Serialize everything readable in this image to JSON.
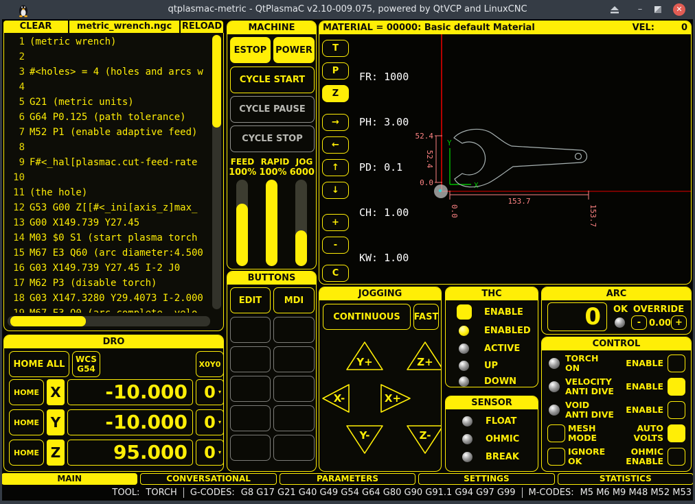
{
  "window": {
    "title": "qtplasmac-metric - QtPlasmaC v2.10-009.075, powered by QtVCP and LinuxCNC"
  },
  "file_bar": {
    "clear_label": "CLEAR",
    "filename": "metric_wrench.ngc",
    "reload_label": "RELOAD"
  },
  "gcode_lines": [
    {
      "n": "1",
      "text": "(metric wrench)"
    },
    {
      "n": "2",
      "text": ""
    },
    {
      "n": "3",
      "text": "#<holes> = 4 (holes and arcs w"
    },
    {
      "n": "4",
      "text": ""
    },
    {
      "n": "5",
      "text": "G21 (metric units)"
    },
    {
      "n": "6",
      "text": "G64 P0.125 (path tolerance)"
    },
    {
      "n": "7",
      "text": "M52 P1 (enable adaptive feed)"
    },
    {
      "n": "8",
      "text": ""
    },
    {
      "n": "9",
      "text": "F#<_hal[plasmac.cut-feed-rate"
    },
    {
      "n": "10",
      "text": ""
    },
    {
      "n": "11",
      "text": "(the hole)"
    },
    {
      "n": "12",
      "text": "G53 G00 Z[[#<_ini[axis_z]max_"
    },
    {
      "n": "13",
      "text": "G00 X149.739 Y27.45"
    },
    {
      "n": "14",
      "text": "M03 $0 S1 (start plasma torch"
    },
    {
      "n": "15",
      "text": "M67 E3 Q60 (arc diameter:4.500"
    },
    {
      "n": "16",
      "text": "G03 X149.739 Y27.45 I-2 J0"
    },
    {
      "n": "17",
      "text": "M62 P3 (disable torch)"
    },
    {
      "n": "18",
      "text": "G03 X147.3280 Y29.4073 I-2.000"
    },
    {
      "n": "19",
      "text": "M67 E3 Q0 (arc complete, velo"
    }
  ],
  "machine": {
    "title": "MACHINE",
    "estop": "ESTOP",
    "power": "POWER",
    "cycle_start": "CYCLE START",
    "cycle_pause": "CYCLE PAUSE",
    "cycle_stop": "CYCLE STOP",
    "sliders": [
      {
        "label": "FEED",
        "value": "100%",
        "pct": 72
      },
      {
        "label": "RAPID",
        "value": "100%",
        "pct": 100
      },
      {
        "label": "JOG",
        "value": "6000",
        "pct": 41
      }
    ]
  },
  "buttons_panel": {
    "title": "BUTTONS",
    "edit": "EDIT",
    "mdi": "MDI"
  },
  "preview": {
    "material": "MATERIAL =  00000: Basic default Material",
    "vel_label": "VEL:",
    "vel_value": "0",
    "toolbar": [
      "T",
      "P",
      "Z",
      "→",
      "←",
      "↑",
      "↓",
      "+",
      "-",
      "C"
    ],
    "overlay_lines": [
      "FR: 1000",
      "PH: 3.00",
      "PD: 0.1",
      "CH: 1.00",
      "KW: 1.00"
    ],
    "dims": {
      "ytop": "52.4",
      "yside": "52.4",
      "ybottom": "0.0",
      "xlen": "153.7",
      "xleft": "0.0",
      "xright": "153.7"
    },
    "axes": {
      "x": "X",
      "y": "Y"
    }
  },
  "jogging": {
    "title": "JOGGING",
    "continuous": "CONTINUOUS",
    "fast": "FAST",
    "jogs": {
      "yplus": "Y+",
      "zplus": "Z+",
      "xminus": "X-",
      "xplus": "X+",
      "yminus": "Y-",
      "zminus": "Z-"
    }
  },
  "thc": {
    "title": "THC",
    "enable_label": "ENABLE",
    "enable_checked": true,
    "items": [
      {
        "label": "ENABLED",
        "on": true
      },
      {
        "label": "ACTIVE",
        "on": false
      },
      {
        "label": "UP",
        "on": false
      },
      {
        "label": "DOWN",
        "on": false
      }
    ]
  },
  "sensor": {
    "title": "SENSOR",
    "items": [
      {
        "label": "FLOAT",
        "on": false
      },
      {
        "label": "OHMIC",
        "on": false
      },
      {
        "label": "BREAK",
        "on": false
      }
    ]
  },
  "arc": {
    "title": "ARC",
    "value": "0",
    "ok_label": "OK",
    "ok_on": false,
    "override_label": "OVERRIDE",
    "minus_label": "-",
    "override_value": "0.00",
    "plus_label": "+"
  },
  "control": {
    "title": "CONTROL",
    "rows": [
      {
        "label1": "TORCH",
        "label2": "ON",
        "right1": "ENABLE",
        "right2": "",
        "checked": false
      },
      {
        "label1": "VELOCITY",
        "label2": "ANTI DIVE",
        "right1": "ENABLE",
        "right2": "",
        "checked": true
      },
      {
        "label1": "VOID",
        "label2": "ANTI DIVE",
        "right1": "ENABLE",
        "right2": "",
        "checked": false
      },
      {
        "label1": "MESH",
        "label2": "MODE",
        "right1": "AUTO",
        "right2": "VOLTS",
        "checked": true
      },
      {
        "label1": "IGNORE",
        "label2": "OK",
        "right1": "OHMIC",
        "right2": "ENABLE",
        "checked": false
      }
    ]
  },
  "dro": {
    "title": "DRO",
    "home_all": "HOME ALL",
    "wcs_line1": "WCS",
    "wcs_line2": "G54",
    "x0y0": "X0Y0",
    "axes": [
      {
        "home": "HOME",
        "letter": "X",
        "value": "-10.000",
        "zero": "0"
      },
      {
        "home": "HOME",
        "letter": "Y",
        "value": "-10.000",
        "zero": "0"
      },
      {
        "home": "HOME",
        "letter": "Z",
        "value": "95.000",
        "zero": "0"
      }
    ]
  },
  "tabs": [
    {
      "label": "MAIN",
      "active": true
    },
    {
      "label": "CONVERSATIONAL",
      "active": false
    },
    {
      "label": "PARAMETERS",
      "active": false
    },
    {
      "label": "SETTINGS",
      "active": false
    },
    {
      "label": "STATISTICS",
      "active": false
    }
  ],
  "statusbar": {
    "tool_label": "TOOL:",
    "tool_value": "TORCH",
    "gcodes_label": "G-CODES:",
    "gcodes_value": "G8 G17 G21 G40 G49 G54 G64 G80 G90 G91.1 G94 G97 G99",
    "mcodes_label": "M-CODES:",
    "mcodes_value": "M5 M6 M9 M48 M52 M53"
  },
  "colors": {
    "accent_yellow": "#ffee06",
    "panel_bg": "#0a0a05",
    "titlebar": "#353c45",
    "machine_bounds_red": "#e00000",
    "dimension_pink": "#ff8484",
    "axis_green": "#00c000",
    "wrench_outline": "#a8b2b2",
    "overlay_white": "#ffffff",
    "close_red": "#e25d54"
  }
}
